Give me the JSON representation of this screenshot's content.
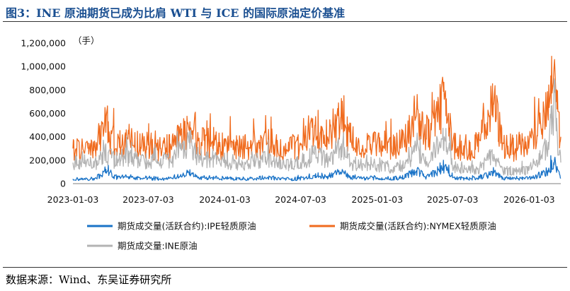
{
  "title": "图3：INE 原油期货已成为比肩 WTI 与 ICE 的国际原油定价基准",
  "source": "数据来源：Wind、东吴证券研究所",
  "chart_data": {
    "type": "line",
    "unit_label": "（手）",
    "y_ticks": [
      "0",
      "200,000",
      "400,000",
      "600,000",
      "800,000",
      "1,000,000",
      "1,200,000"
    ],
    "ylim": [
      0,
      1200000
    ],
    "x_ticks": [
      "2023-01-03",
      "2023-07-03",
      "2024-01-03",
      "2024-07-03",
      "2025-01-03",
      "2025-07-03",
      "2026-01-03"
    ],
    "x_range": [
      "2023-01-03",
      "2026-03-20"
    ],
    "legend_position": "bottom",
    "series": [
      {
        "name": "期货成交量(活跃合约):NYMEX轻质原油",
        "color": "#f06b1e",
        "values": [
          [
            "2023-01-03",
            300000
          ],
          [
            "2023-02-01",
            290000
          ],
          [
            "2023-03-01",
            330000
          ],
          [
            "2023-03-20",
            500000
          ],
          [
            "2023-04-15",
            320000
          ],
          [
            "2023-05-15",
            380000
          ],
          [
            "2023-06-15",
            310000
          ],
          [
            "2023-07-03",
            330000
          ],
          [
            "2023-08-01",
            300000
          ],
          [
            "2023-09-01",
            320000
          ],
          [
            "2023-09-20",
            420000
          ],
          [
            "2023-10-09",
            460000
          ],
          [
            "2023-11-01",
            370000
          ],
          [
            "2023-12-01",
            340000
          ],
          [
            "2024-01-03",
            320000
          ],
          [
            "2024-02-01",
            330000
          ],
          [
            "2024-03-01",
            310000
          ],
          [
            "2024-04-15",
            350000
          ],
          [
            "2024-05-15",
            300000
          ],
          [
            "2024-06-15",
            310000
          ],
          [
            "2024-07-03",
            330000
          ],
          [
            "2024-08-05",
            420000
          ],
          [
            "2024-09-10",
            400000
          ],
          [
            "2024-10-07",
            560000
          ],
          [
            "2024-11-01",
            380000
          ],
          [
            "2024-12-01",
            330000
          ],
          [
            "2025-01-03",
            350000
          ],
          [
            "2025-02-01",
            320000
          ],
          [
            "2025-03-01",
            340000
          ],
          [
            "2025-04-07",
            580000
          ],
          [
            "2025-05-01",
            380000
          ],
          [
            "2025-06-13",
            720000
          ],
          [
            "2025-06-23",
            600000
          ],
          [
            "2025-07-03",
            320000
          ],
          [
            "2025-08-01",
            310000
          ],
          [
            "2025-09-01",
            320000
          ],
          [
            "2025-10-10",
            680000
          ],
          [
            "2025-11-01",
            330000
          ],
          [
            "2025-12-01",
            300000
          ],
          [
            "2026-01-03",
            340000
          ],
          [
            "2026-02-01",
            480000
          ],
          [
            "2026-02-20",
            650000
          ],
          [
            "2026-03-03",
            950000
          ],
          [
            "2026-03-05",
            1060000
          ],
          [
            "2026-03-09",
            700000
          ],
          [
            "2026-03-20",
            400000
          ]
        ]
      },
      {
        "name": "期货成交量:INE原油",
        "color": "#b3b3b3",
        "values": [
          [
            "2023-01-03",
            180000
          ],
          [
            "2023-02-01",
            170000
          ],
          [
            "2023-03-01",
            190000
          ],
          [
            "2023-03-20",
            260000
          ],
          [
            "2023-04-15",
            200000
          ],
          [
            "2023-05-15",
            230000
          ],
          [
            "2023-06-15",
            190000
          ],
          [
            "2023-07-03",
            200000
          ],
          [
            "2023-08-01",
            190000
          ],
          [
            "2023-09-01",
            210000
          ],
          [
            "2023-10-09",
            350000
          ],
          [
            "2023-11-01",
            220000
          ],
          [
            "2023-12-01",
            200000
          ],
          [
            "2024-01-03",
            190000
          ],
          [
            "2024-02-01",
            180000
          ],
          [
            "2024-03-01",
            170000
          ],
          [
            "2024-04-15",
            220000
          ],
          [
            "2024-05-15",
            170000
          ],
          [
            "2024-06-15",
            160000
          ],
          [
            "2024-07-03",
            180000
          ],
          [
            "2024-08-05",
            250000
          ],
          [
            "2024-09-10",
            200000
          ],
          [
            "2024-10-07",
            320000
          ],
          [
            "2024-11-01",
            180000
          ],
          [
            "2024-12-01",
            150000
          ],
          [
            "2025-01-03",
            160000
          ],
          [
            "2025-02-01",
            140000
          ],
          [
            "2025-03-01",
            150000
          ],
          [
            "2025-04-07",
            280000
          ],
          [
            "2025-05-01",
            160000
          ],
          [
            "2025-06-13",
            400000
          ],
          [
            "2025-06-23",
            300000
          ],
          [
            "2025-07-03",
            140000
          ],
          [
            "2025-08-01",
            130000
          ],
          [
            "2025-09-01",
            120000
          ],
          [
            "2025-10-10",
            250000
          ],
          [
            "2025-11-01",
            120000
          ],
          [
            "2025-12-01",
            100000
          ],
          [
            "2026-01-03",
            120000
          ],
          [
            "2026-02-01",
            220000
          ],
          [
            "2026-02-20",
            350000
          ],
          [
            "2026-03-03",
            650000
          ],
          [
            "2026-03-05",
            780000
          ],
          [
            "2026-03-09",
            450000
          ],
          [
            "2026-03-20",
            180000
          ]
        ]
      },
      {
        "name": "期货成交量(活跃合约):IPE轻质原油",
        "color": "#1a73c7",
        "values": [
          [
            "2023-01-03",
            40000
          ],
          [
            "2023-02-01",
            35000
          ],
          [
            "2023-03-01",
            45000
          ],
          [
            "2023-03-20",
            110000
          ],
          [
            "2023-04-15",
            50000
          ],
          [
            "2023-05-15",
            60000
          ],
          [
            "2023-06-15",
            45000
          ],
          [
            "2023-07-03",
            50000
          ],
          [
            "2023-08-01",
            40000
          ],
          [
            "2023-09-01",
            45000
          ],
          [
            "2023-10-09",
            90000
          ],
          [
            "2023-11-01",
            55000
          ],
          [
            "2023-12-01",
            50000
          ],
          [
            "2024-01-03",
            45000
          ],
          [
            "2024-02-01",
            45000
          ],
          [
            "2024-03-01",
            40000
          ],
          [
            "2024-04-15",
            55000
          ],
          [
            "2024-05-15",
            40000
          ],
          [
            "2024-06-15",
            40000
          ],
          [
            "2024-07-03",
            45000
          ],
          [
            "2024-08-05",
            70000
          ],
          [
            "2024-09-10",
            60000
          ],
          [
            "2024-10-07",
            100000
          ],
          [
            "2024-11-01",
            55000
          ],
          [
            "2024-12-01",
            45000
          ],
          [
            "2025-01-03",
            50000
          ],
          [
            "2025-02-01",
            45000
          ],
          [
            "2025-03-01",
            50000
          ],
          [
            "2025-04-07",
            110000
          ],
          [
            "2025-05-01",
            55000
          ],
          [
            "2025-06-13",
            140000
          ],
          [
            "2025-06-23",
            90000
          ],
          [
            "2025-07-03",
            50000
          ],
          [
            "2025-08-01",
            45000
          ],
          [
            "2025-09-01",
            45000
          ],
          [
            "2025-10-10",
            90000
          ],
          [
            "2025-11-01",
            45000
          ],
          [
            "2025-12-01",
            40000
          ],
          [
            "2026-01-03",
            45000
          ],
          [
            "2026-02-01",
            80000
          ],
          [
            "2026-02-20",
            110000
          ],
          [
            "2026-03-03",
            180000
          ],
          [
            "2026-03-05",
            210000
          ],
          [
            "2026-03-09",
            120000
          ],
          [
            "2026-03-20",
            50000
          ]
        ]
      }
    ]
  }
}
